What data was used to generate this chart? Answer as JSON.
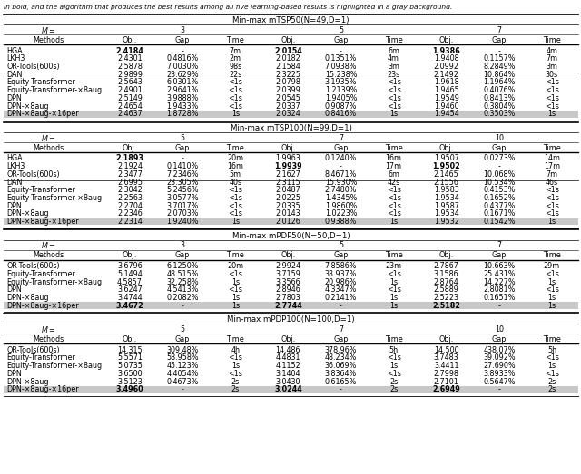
{
  "caption": "in bold, and the algorithm that produces the best results among all five learning-based results is highlighted in a gray background.",
  "sections": [
    {
      "header": "Min-max mTSP50(N=49,D=1)",
      "M_labels": [
        "3",
        "5",
        "7"
      ],
      "rows": [
        {
          "name": "HGA",
          "data": [
            "2.4184",
            "-",
            "7m",
            "2.0154",
            "-",
            "6m",
            "1.9386",
            "-",
            "4m"
          ],
          "bold": [
            0,
            3,
            6
          ],
          "gray": false,
          "sep_after": false
        },
        {
          "name": "LKH3",
          "data": [
            "2.4301",
            "0.4816%",
            "2m",
            "2.0182",
            "0.1351%",
            "4m",
            "1.9408",
            "0.1157%",
            "7m"
          ],
          "bold": [],
          "gray": false,
          "sep_after": false
        },
        {
          "name": "OR-Tools(600s)",
          "data": [
            "2.5878",
            "7.0030%",
            "98s",
            "2.1584",
            "7.0938%",
            "3m",
            "2.0992",
            "8.2849%",
            "3m"
          ],
          "bold": [],
          "gray": false,
          "sep_after": true
        },
        {
          "name": "DAN",
          "data": [
            "2.9899",
            "23.629%",
            "22s",
            "2.3225",
            "15.238%",
            "23s",
            "2.1492",
            "10.864%",
            "30s"
          ],
          "bold": [],
          "gray": false,
          "sep_after": false
        },
        {
          "name": "Equity-Transformer",
          "data": [
            "2.5643",
            "6.0301%",
            "<1s",
            "2.0798",
            "3.1935%",
            "<1s",
            "1.9618",
            "1.1964%",
            "<1s"
          ],
          "bold": [],
          "gray": false,
          "sep_after": false
        },
        {
          "name": "Equity-Transformer-×8aug",
          "data": [
            "2.4901",
            "2.9641%",
            "<1s",
            "2.0399",
            "1.2139%",
            "<1s",
            "1.9465",
            "0.4076%",
            "<1s"
          ],
          "bold": [],
          "gray": false,
          "sep_after": false
        },
        {
          "name": "DPN",
          "data": [
            "2.5149",
            "3.9888%",
            "<1s",
            "2.0545",
            "1.9405%",
            "<1s",
            "1.9549",
            "0.8413%",
            "<1s"
          ],
          "bold": [],
          "gray": false,
          "sep_after": false
        },
        {
          "name": "DPN-×8aug",
          "data": [
            "2.4654",
            "1.9433%",
            "<1s",
            "2.0337",
            "0.9087%",
            "<1s",
            "1.9460",
            "0.3804%",
            "<1s"
          ],
          "bold": [],
          "gray": false,
          "sep_after": false
        },
        {
          "name": "DPN-×8aug-×16per",
          "data": [
            "2.4637",
            "1.8728%",
            "1s",
            "2.0324",
            "0.8416%",
            "1s",
            "1.9454",
            "0.3503%",
            "1s"
          ],
          "bold": [],
          "gray": true,
          "sep_after": false
        }
      ]
    },
    {
      "header": "Min-max mTSP100(N=99,D=1)",
      "M_labels": [
        "5",
        "7",
        "10"
      ],
      "rows": [
        {
          "name": "HGA",
          "data": [
            "2.1893",
            "-",
            "20m",
            "1.9963",
            "0.1240%",
            "16m",
            "1.9507",
            "0.0273%",
            "14m"
          ],
          "bold": [
            0
          ],
          "gray": false,
          "sep_after": false
        },
        {
          "name": "LKH3",
          "data": [
            "2.1924",
            "0.1410%",
            "16m",
            "1.9939",
            "-",
            "17m",
            "1.9502",
            "-",
            "17m"
          ],
          "bold": [
            3,
            6
          ],
          "gray": false,
          "sep_after": false
        },
        {
          "name": "OR-Tools(600s)",
          "data": [
            "2.3477",
            "7.2346%",
            "5m",
            "2.1627",
            "8.4671%",
            "6m",
            "2.1465",
            "10.068%",
            "7m"
          ],
          "bold": [],
          "gray": false,
          "sep_after": true
        },
        {
          "name": "DAN",
          "data": [
            "2.6995",
            "23.305%",
            "40s",
            "2.3115",
            "15.930%",
            "42s",
            "2.1556",
            "10.534%",
            "46s"
          ],
          "bold": [],
          "gray": false,
          "sep_after": false
        },
        {
          "name": "Equity-Transformer",
          "data": [
            "2.3042",
            "5.2456%",
            "<1s",
            "2.0487",
            "2.7480%",
            "<1s",
            "1.9583",
            "0.4153%",
            "<1s"
          ],
          "bold": [],
          "gray": false,
          "sep_after": false
        },
        {
          "name": "Equity-Transformer-×8aug",
          "data": [
            "2.2563",
            "3.0577%",
            "<1s",
            "2.0225",
            "1.4345%",
            "<1s",
            "1.9534",
            "0.1652%",
            "<1s"
          ],
          "bold": [],
          "gray": false,
          "sep_after": false
        },
        {
          "name": "DPN",
          "data": [
            "2.2704",
            "3.7017%",
            "<1s",
            "2.0335",
            "1.9860%",
            "<1s",
            "1.9587",
            "0.4377%",
            "<1s"
          ],
          "bold": [],
          "gray": false,
          "sep_after": false
        },
        {
          "name": "DPN-×8aug",
          "data": [
            "2.2346",
            "2.0703%",
            "<1s",
            "2.0143",
            "1.0223%",
            "<1s",
            "1.9534",
            "0.1671%",
            "<1s"
          ],
          "bold": [],
          "gray": false,
          "sep_after": false
        },
        {
          "name": "DPN-×8aug-×16per",
          "data": [
            "2.2314",
            "1.9240%",
            "1s",
            "2.0126",
            "0.9388%",
            "1s",
            "1.9532",
            "0.1542%",
            "1s"
          ],
          "bold": [],
          "gray": true,
          "sep_after": false
        }
      ]
    },
    {
      "header": "Min-max mPDP50(N=50,D=1)",
      "M_labels": [
        "3",
        "5",
        "7"
      ],
      "rows": [
        {
          "name": "OR-Tools(600s)",
          "data": [
            "3.6796",
            "6.1250%",
            "20m",
            "2.9924",
            "7.8586%",
            "23m",
            "2.7867",
            "10.663%",
            "29m"
          ],
          "bold": [],
          "gray": false,
          "sep_after": false
        },
        {
          "name": "Equity-Transformer",
          "data": [
            "5.1494",
            "48.515%",
            "<1s",
            "3.7159",
            "33.937%",
            "<1s",
            "3.1586",
            "25.431%",
            "<1s"
          ],
          "bold": [],
          "gray": false,
          "sep_after": false
        },
        {
          "name": "Equity-Transformer-×8aug",
          "data": [
            "4.5857",
            "32.258%",
            "1s",
            "3.3566",
            "20.986%",
            "1s",
            "2.8764",
            "14.227%",
            "1s"
          ],
          "bold": [],
          "gray": false,
          "sep_after": false
        },
        {
          "name": "DPN",
          "data": [
            "3.6247",
            "4.5413%",
            "<1s",
            "2.8946",
            "4.3347%",
            "<1s",
            "2.5889",
            "2.8081%",
            "<1s"
          ],
          "bold": [],
          "gray": false,
          "sep_after": false
        },
        {
          "name": "DPN-×8aug",
          "data": [
            "3.4744",
            "0.2082%",
            "1s",
            "2.7803",
            "0.2141%",
            "1s",
            "2.5223",
            "0.1651%",
            "1s"
          ],
          "bold": [],
          "gray": false,
          "sep_after": false
        },
        {
          "name": "DPN-×8aug-×16per",
          "data": [
            "3.4672",
            "-",
            "1s",
            "2.7744",
            "-",
            "1s",
            "2.5182",
            "-",
            "1s"
          ],
          "bold": [
            0,
            3,
            6
          ],
          "gray": true,
          "sep_after": false
        }
      ]
    },
    {
      "header": "Min-max mPDP100(N=100,D=1)",
      "M_labels": [
        "5",
        "7",
        "10"
      ],
      "rows": [
        {
          "name": "OR-Tools(600s)",
          "data": [
            "14.315",
            "309.48%",
            "4h",
            "14.486",
            "378.96%",
            "5h",
            "14.500",
            "438.07%",
            "5h"
          ],
          "bold": [],
          "gray": false,
          "sep_after": false
        },
        {
          "name": "Equity-Transformer",
          "data": [
            "5.5571",
            "58.958%",
            "<1s",
            "4.4831",
            "48.234%",
            "<1s",
            "3.7483",
            "39.092%",
            "<1s"
          ],
          "bold": [],
          "gray": false,
          "sep_after": false
        },
        {
          "name": "Equity-Transformer-×8aug",
          "data": [
            "5.0735",
            "45.123%",
            "1s",
            "4.1152",
            "36.069%",
            "1s",
            "3.4411",
            "27.690%",
            "1s"
          ],
          "bold": [],
          "gray": false,
          "sep_after": false
        },
        {
          "name": "DPN",
          "data": [
            "3.6500",
            "4.4054%",
            "<1s",
            "3.1404",
            "3.8364%",
            "<1s",
            "2.7998",
            "3.8933%",
            "<1s"
          ],
          "bold": [],
          "gray": false,
          "sep_after": false
        },
        {
          "name": "DPN-×8aug",
          "data": [
            "3.5123",
            "0.4673%",
            "2s",
            "3.0430",
            "0.6165%",
            "2s",
            "2.7101",
            "0.5647%",
            "2s"
          ],
          "bold": [],
          "gray": false,
          "sep_after": false
        },
        {
          "name": "DPN-×8aug-×16per",
          "data": [
            "3.4960",
            "-",
            "2s",
            "3.0244",
            "-",
            "2s",
            "2.6949",
            "-",
            "2s"
          ],
          "bold": [
            0,
            3,
            6
          ],
          "gray": true,
          "sep_after": false
        }
      ]
    }
  ]
}
